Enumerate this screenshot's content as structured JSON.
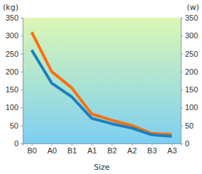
{
  "chart_data": {
    "type": "line",
    "categories": [
      "B0",
      "A0",
      "B1",
      "A1",
      "B2",
      "A2",
      "B3",
      "A3"
    ],
    "series": [
      {
        "color": "#ff6f0a",
        "axis": "y2",
        "values": [
          310,
          200,
          155,
          82,
          65,
          50,
          28,
          25
        ]
      },
      {
        "color": "#1b7fbf",
        "values": [
          260,
          168,
          130,
          70,
          55,
          43,
          24,
          20
        ]
      }
    ],
    "x_label": "Size",
    "y_label": "(kg)",
    "y2_label": "(w)",
    "ylim": [
      0,
      350
    ],
    "yticks": [
      0,
      50,
      100,
      150,
      200,
      250,
      300,
      350
    ],
    "y2lim": [
      0,
      350
    ],
    "y2ticks": [
      0,
      50,
      100,
      150,
      200,
      250,
      300,
      350
    ],
    "grid": false
  }
}
